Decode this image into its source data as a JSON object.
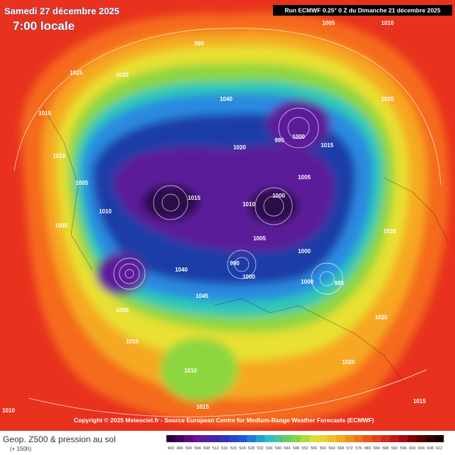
{
  "header": {
    "date": "Samedi 27 décembre 2025",
    "time": "7:00 locale",
    "run": "Run ECMWF 0.25° 0 Z du Dimanche 21 décembre 2025"
  },
  "footer": {
    "copyright": "Copyright © 2025 Meteociel.fr - Source European Centre for Medium-Range Weather Forecasts (ECMWF)",
    "title": "Geop. Z500 & pression au sol",
    "lead": "(+ 150h)"
  },
  "legend": {
    "levels": [
      492,
      496,
      500,
      504,
      508,
      512,
      516,
      520,
      524,
      528,
      532,
      536,
      540,
      544,
      548,
      552,
      556,
      560,
      564,
      568,
      572,
      576,
      580,
      584,
      588,
      592,
      596,
      600,
      604,
      608,
      612
    ]
  },
  "pressure_labels": [
    "1005",
    "1010",
    "1025",
    "1030",
    "990",
    "1015",
    "1015",
    "1005",
    "1010",
    "1005",
    "1040",
    "1020",
    "995",
    "1000",
    "1015",
    "1005",
    "1000",
    "1010",
    "1015",
    "1005",
    "1000",
    "995",
    "1000",
    "990",
    "1000",
    "1040",
    "1045",
    "1000",
    "1010",
    "1010",
    "1015",
    "1020",
    "1035",
    "1025",
    "1020",
    "1010",
    "1015"
  ]
}
